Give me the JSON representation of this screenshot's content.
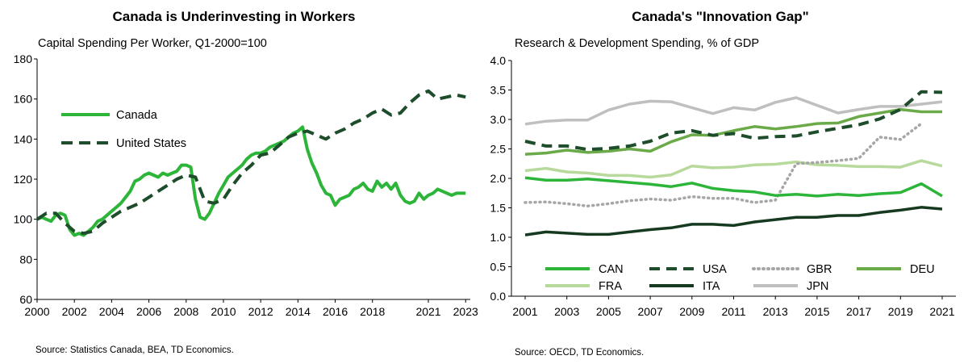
{
  "colors": {
    "CAN": "#2db53a",
    "USA": "#1e4d2b",
    "GBR": "#a6a6a6",
    "DEU": "#6aaa48",
    "FRA": "#b8d99c",
    "ITA": "#163a20",
    "JPN": "#bfbfbf",
    "axis": "#000000"
  },
  "chart_data": [
    {
      "type": "line",
      "title": "Canada is Underinvesting in Workers",
      "subtitle": "Capital Spending Per Worker, Q1-2000=100",
      "source": "Source: Statistics Canada, BEA, TD Economics.",
      "xlabel": "",
      "ylabel": "",
      "xlim": [
        2000,
        2023.25
      ],
      "ylim": [
        60,
        180
      ],
      "yticks": [
        "60",
        "80",
        "100",
        "120",
        "140",
        "160",
        "180"
      ],
      "xticks": [
        "2000",
        "2002",
        "2004",
        "2006",
        "2008",
        "2010",
        "2012",
        "2014",
        "2016",
        "2018",
        "2021",
        "2023"
      ],
      "series": [
        {
          "name": "Canada",
          "style": "solid",
          "x": [
            2000.0,
            2000.25,
            2000.5,
            2000.75,
            2001.0,
            2001.25,
            2001.5,
            2001.75,
            2002.0,
            2002.25,
            2002.5,
            2002.75,
            2003.0,
            2003.25,
            2003.5,
            2003.75,
            2004.0,
            2004.25,
            2004.5,
            2004.75,
            2005.0,
            2005.25,
            2005.5,
            2005.75,
            2006.0,
            2006.25,
            2006.5,
            2006.75,
            2007.0,
            2007.25,
            2007.5,
            2007.75,
            2008.0,
            2008.25,
            2008.5,
            2008.75,
            2009.0,
            2009.25,
            2009.5,
            2009.75,
            2010.0,
            2010.25,
            2010.5,
            2010.75,
            2011.0,
            2011.25,
            2011.5,
            2011.75,
            2012.0,
            2012.25,
            2012.5,
            2012.75,
            2013.0,
            2013.25,
            2013.5,
            2013.75,
            2014.0,
            2014.25,
            2014.5,
            2014.75,
            2015.0,
            2015.25,
            2015.5,
            2015.75,
            2016.0,
            2016.25,
            2016.5,
            2016.75,
            2017.0,
            2017.25,
            2017.5,
            2017.75,
            2018.0,
            2018.25,
            2018.5,
            2018.75,
            2019.0,
            2019.25,
            2019.5,
            2019.75,
            2020.0,
            2020.25,
            2020.5,
            2020.75,
            2021.0,
            2021.25,
            2021.5,
            2021.75,
            2022.0,
            2022.25,
            2022.5,
            2022.75,
            2023.0
          ],
          "values": [
            100,
            101,
            100,
            99,
            102,
            103,
            102,
            95,
            92,
            93,
            92,
            94,
            96,
            99,
            100,
            102,
            104,
            106,
            108,
            111,
            114,
            119,
            120,
            122,
            123,
            122,
            121,
            123,
            122,
            123,
            124,
            127,
            127,
            126,
            110,
            101,
            100,
            103,
            108,
            113,
            117,
            121,
            123,
            125,
            127,
            130,
            132,
            133,
            133,
            134,
            136,
            137,
            138,
            139,
            141,
            143,
            144,
            146,
            135,
            128,
            123,
            117,
            113,
            112,
            107,
            110,
            111,
            112,
            115,
            116,
            118,
            115,
            114,
            119,
            116,
            118,
            115,
            118,
            112,
            109,
            108,
            109,
            113,
            110,
            112,
            113,
            115,
            114,
            113,
            112,
            113,
            113,
            113
          ]
        },
        {
          "name": "United States",
          "style": "dashed",
          "x": [
            2000.0,
            2000.5,
            2001.0,
            2001.5,
            2002.0,
            2002.5,
            2003.0,
            2003.5,
            2004.0,
            2004.5,
            2005.0,
            2005.5,
            2006.0,
            2006.5,
            2007.0,
            2007.5,
            2008.0,
            2008.5,
            2009.0,
            2009.5,
            2010.0,
            2010.5,
            2011.0,
            2011.5,
            2012.0,
            2012.5,
            2013.0,
            2013.5,
            2014.0,
            2014.5,
            2015.0,
            2015.5,
            2016.0,
            2016.5,
            2017.0,
            2017.5,
            2018.0,
            2018.5,
            2019.0,
            2019.5,
            2020.0,
            2020.5,
            2021.0,
            2021.5,
            2022.0,
            2022.5,
            2023.0
          ],
          "values": [
            100,
            103,
            103,
            98,
            94,
            93,
            94,
            98,
            101,
            104,
            106,
            108,
            111,
            114,
            117,
            120,
            122,
            121,
            109,
            108,
            110,
            117,
            123,
            127,
            132,
            133,
            137,
            141,
            143,
            144,
            142,
            140,
            143,
            145,
            148,
            150,
            153,
            155,
            152,
            153,
            158,
            162,
            164,
            160,
            161,
            162,
            161
          ]
        }
      ],
      "legend": [
        "Canada",
        "United States"
      ]
    },
    {
      "type": "line",
      "title": "Canada's \"Innovation Gap\"",
      "subtitle": "Research & Development Spending, % of GDP",
      "source": "Source: OECD,  TD Economics.",
      "xlabel": "",
      "ylabel": "",
      "xlim": [
        2001,
        2021
      ],
      "ylim": [
        0,
        4
      ],
      "yticks": [
        "0.0",
        "0.5",
        "1.0",
        "1.5",
        "2.0",
        "2.5",
        "3.0",
        "3.5",
        "4.0"
      ],
      "xticks": [
        "2001",
        "2003",
        "2005",
        "2007",
        "2009",
        "2011",
        "2013",
        "2015",
        "2017",
        "2019",
        "2021"
      ],
      "x": [
        2001,
        2002,
        2003,
        2004,
        2005,
        2006,
        2007,
        2008,
        2009,
        2010,
        2011,
        2012,
        2013,
        2014,
        2015,
        2016,
        2017,
        2018,
        2019,
        2020,
        2021
      ],
      "series": [
        {
          "name": "CAN",
          "style": "solid",
          "values": [
            2.01,
            1.97,
            1.97,
            1.99,
            1.96,
            1.93,
            1.9,
            1.86,
            1.92,
            1.83,
            1.79,
            1.77,
            1.71,
            1.73,
            1.7,
            1.73,
            1.71,
            1.74,
            1.76,
            1.91,
            1.7
          ]
        },
        {
          "name": "USA",
          "style": "dashed",
          "values": [
            2.63,
            2.55,
            2.55,
            2.49,
            2.51,
            2.55,
            2.63,
            2.77,
            2.81,
            2.73,
            2.76,
            2.68,
            2.71,
            2.72,
            2.79,
            2.85,
            2.91,
            3.01,
            3.17,
            3.47,
            3.46
          ]
        },
        {
          "name": "GBR",
          "style": "dotted",
          "values": [
            1.59,
            1.6,
            1.57,
            1.53,
            1.57,
            1.62,
            1.65,
            1.63,
            1.69,
            1.66,
            1.66,
            1.59,
            1.63,
            2.25,
            2.27,
            2.3,
            2.34,
            2.7,
            2.66,
            2.93,
            null
          ]
        },
        {
          "name": "DEU",
          "style": "solid",
          "values": [
            2.41,
            2.43,
            2.48,
            2.44,
            2.46,
            2.5,
            2.46,
            2.62,
            2.74,
            2.73,
            2.81,
            2.88,
            2.84,
            2.88,
            2.93,
            2.94,
            3.05,
            3.11,
            3.17,
            3.13,
            3.13
          ]
        },
        {
          "name": "FRA",
          "style": "solid",
          "values": [
            2.13,
            2.17,
            2.11,
            2.09,
            2.05,
            2.05,
            2.02,
            2.06,
            2.21,
            2.18,
            2.19,
            2.23,
            2.24,
            2.28,
            2.23,
            2.22,
            2.2,
            2.2,
            2.19,
            2.3,
            2.21
          ]
        },
        {
          "name": "ITA",
          "style": "solid",
          "values": [
            1.04,
            1.09,
            1.07,
            1.05,
            1.05,
            1.09,
            1.13,
            1.16,
            1.22,
            1.22,
            1.2,
            1.26,
            1.3,
            1.34,
            1.34,
            1.37,
            1.37,
            1.42,
            1.46,
            1.51,
            1.48
          ]
        },
        {
          "name": "JPN",
          "style": "solid",
          "values": [
            2.92,
            2.97,
            2.99,
            2.99,
            3.16,
            3.26,
            3.31,
            3.3,
            3.2,
            3.1,
            3.2,
            3.16,
            3.29,
            3.37,
            3.24,
            3.11,
            3.17,
            3.22,
            3.22,
            3.26,
            3.3
          ]
        }
      ],
      "legend": [
        "CAN",
        "USA",
        "GBR",
        "DEU",
        "FRA",
        "ITA",
        "JPN"
      ]
    }
  ]
}
